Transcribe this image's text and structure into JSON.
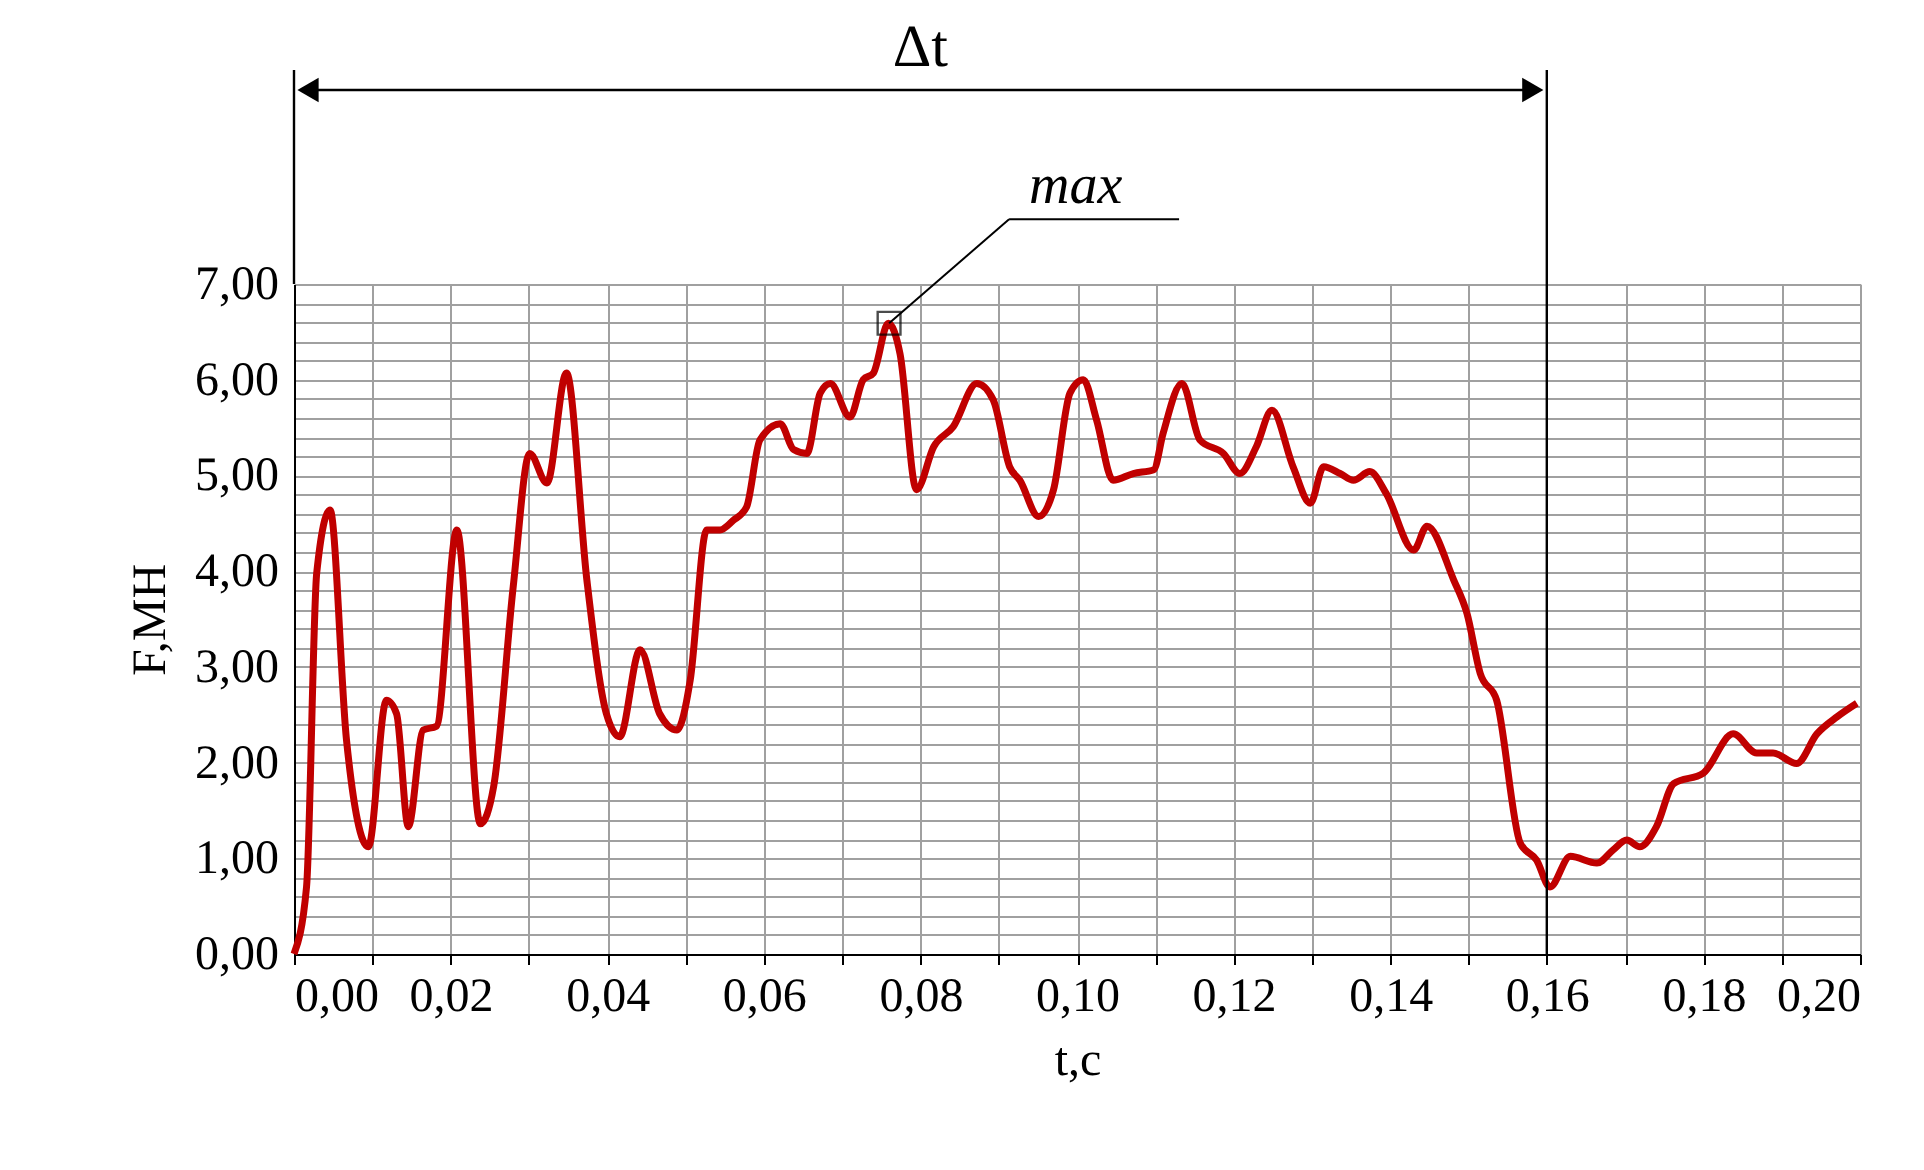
{
  "chart_data": {
    "type": "line",
    "xlabel": "t,с",
    "ylabel": "F,МН",
    "x": [
      0,
      0.0016,
      0.0029,
      0.0046,
      0.0067,
      0.0095,
      0.0118,
      0.0131,
      0.0146,
      0.0165,
      0.0182,
      0.0208,
      0.0238,
      0.0255,
      0.028,
      0.0301,
      0.0323,
      0.0348,
      0.0374,
      0.0399,
      0.0416,
      0.0442,
      0.0467,
      0.0489,
      0.0506,
      0.0527,
      0.0544,
      0.0561,
      0.0578,
      0.0595,
      0.0621,
      0.0638,
      0.0655,
      0.0672,
      0.0685,
      0.071,
      0.0727,
      0.074,
      0.0759,
      0.0774,
      0.0795,
      0.0817,
      0.0842,
      0.0872,
      0.0893,
      0.0914,
      0.0927,
      0.0951,
      0.097,
      0.0991,
      0.1008,
      0.1025,
      0.1046,
      0.1072,
      0.1098,
      0.111,
      0.1134,
      0.1157,
      0.1187,
      0.1208,
      0.1229,
      0.1249,
      0.1276,
      0.1298,
      0.1315,
      0.1336,
      0.1353,
      0.1374,
      0.1395,
      0.143,
      0.1447,
      0.1481,
      0.1498,
      0.1515,
      0.1536,
      0.1566,
      0.1587,
      0.1604,
      0.163,
      0.1664,
      0.1685,
      0.1702,
      0.1719,
      0.174,
      0.1762,
      0.18,
      0.1838,
      0.1868,
      0.1889,
      0.1919,
      0.1945,
      0.1971,
      0.1996
    ],
    "series": [
      {
        "color": "#c00000",
        "values": [
          0,
          0.7,
          3.98,
          4.64,
          2.24,
          1.12,
          2.65,
          2.51,
          1.33,
          2.34,
          2.38,
          4.43,
          1.36,
          1.75,
          3.84,
          5.23,
          4.92,
          6.07,
          3.91,
          2.51,
          2.27,
          3.18,
          2.51,
          2.34,
          2.86,
          4.43,
          4.43,
          4.53,
          4.67,
          5.37,
          5.54,
          5.27,
          5.23,
          5.86,
          5.96,
          5.61,
          6.0,
          6.07,
          6.59,
          6.27,
          4.85,
          5.3,
          5.51,
          5.96,
          5.79,
          5.09,
          4.95,
          4.57,
          4.85,
          5.86,
          6.0,
          5.58,
          4.95,
          5.02,
          5.06,
          5.44,
          5.96,
          5.37,
          5.23,
          5.02,
          5.3,
          5.68,
          5.09,
          4.71,
          5.09,
          5.02,
          4.95,
          5.04,
          4.81,
          4.22,
          4.47,
          3.91,
          3.56,
          2.93,
          2.65,
          1.16,
          0.98,
          0.7,
          1.02,
          0.95,
          1.09,
          1.19,
          1.12,
          1.33,
          1.78,
          1.89,
          2.3,
          2.1,
          2.1,
          1.99,
          2.3,
          2.48,
          2.62
        ]
      }
    ],
    "xlim": [
      0,
      0.2
    ],
    "ylim": [
      0,
      7
    ],
    "xticks": [
      {
        "value": 0,
        "label": "0,00"
      },
      {
        "value": 0.01,
        "label": null
      },
      {
        "value": 0.02,
        "label": "0,02"
      },
      {
        "value": 0.03,
        "label": null
      },
      {
        "value": 0.04,
        "label": "0,04"
      },
      {
        "value": 0.05,
        "label": null
      },
      {
        "value": 0.06,
        "label": "0,06"
      },
      {
        "value": 0.07,
        "label": null
      },
      {
        "value": 0.08,
        "label": "0,08"
      },
      {
        "value": 0.09,
        "label": null
      },
      {
        "value": 0.1,
        "label": "0,10"
      },
      {
        "value": 0.11,
        "label": null
      },
      {
        "value": 0.12,
        "label": "0,12"
      },
      {
        "value": 0.13,
        "label": null
      },
      {
        "value": 0.14,
        "label": "0,14"
      },
      {
        "value": 0.15,
        "label": null
      },
      {
        "value": 0.16,
        "label": "0,16"
      },
      {
        "value": 0.17,
        "label": null
      },
      {
        "value": 0.18,
        "label": "0,18"
      },
      {
        "value": 0.19,
        "label": null
      },
      {
        "value": 0.2,
        "label": "0,20"
      }
    ],
    "yticks": [
      {
        "value": 0,
        "label": "0,00"
      },
      {
        "value": 0.2,
        "label": null
      },
      {
        "value": 0.4,
        "label": null
      },
      {
        "value": 0.6,
        "label": null
      },
      {
        "value": 0.8,
        "label": null
      },
      {
        "value": 1,
        "label": "1,00"
      },
      {
        "value": 1.2,
        "label": null
      },
      {
        "value": 1.4,
        "label": null
      },
      {
        "value": 1.6,
        "label": null
      },
      {
        "value": 1.8,
        "label": null
      },
      {
        "value": 2,
        "label": "2,00"
      },
      {
        "value": 2.2,
        "label": null
      },
      {
        "value": 2.4,
        "label": null
      },
      {
        "value": 2.6,
        "label": null
      },
      {
        "value": 2.8,
        "label": null
      },
      {
        "value": 3,
        "label": "3,00"
      },
      {
        "value": 3.2,
        "label": null
      },
      {
        "value": 3.4,
        "label": null
      },
      {
        "value": 3.6,
        "label": null
      },
      {
        "value": 3.8,
        "label": null
      },
      {
        "value": 4,
        "label": "4,00"
      },
      {
        "value": 4.2,
        "label": null
      },
      {
        "value": 4.4,
        "label": null
      },
      {
        "value": 4.6,
        "label": null
      },
      {
        "value": 4.8,
        "label": null
      },
      {
        "value": 5,
        "label": "5,00"
      },
      {
        "value": 5.2,
        "label": null
      },
      {
        "value": 5.4,
        "label": null
      },
      {
        "value": 5.6,
        "label": null
      },
      {
        "value": 5.8,
        "label": null
      },
      {
        "value": 6,
        "label": "6,00"
      },
      {
        "value": 6.2,
        "label": null
      },
      {
        "value": 6.4,
        "label": null
      },
      {
        "value": 6.6,
        "label": null
      },
      {
        "value": 6.8,
        "label": null
      },
      {
        "value": 7,
        "label": "7,00"
      }
    ],
    "ref_lines": [
      {
        "axis": "x",
        "value": 0.16,
        "label": "Δt"
      }
    ],
    "annotations": [
      {
        "text": "max",
        "x": 0.076,
        "y": 6.59
      }
    ],
    "grid": true,
    "marker": "none",
    "line_style": "solid"
  }
}
